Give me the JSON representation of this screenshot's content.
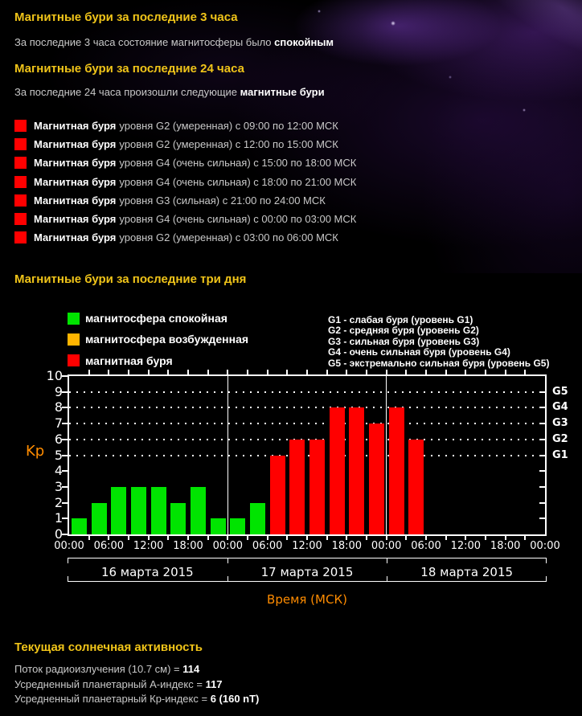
{
  "colors": {
    "background": "#000000",
    "header_yellow": "#f0c419",
    "text": "#c9c9c9",
    "text_bold": "#ffffff",
    "quiet_green": "#00e400",
    "excited_amber": "#ffb400",
    "storm_red": "#ff0000",
    "axis_orange": "#ff8c00"
  },
  "section_3h": {
    "title": "Магнитные бури за последние 3 часа",
    "text": "За последние 3 часа состояние магнитосферы было",
    "text_bold": "спокойным"
  },
  "section_24h": {
    "title": "Магнитные бури за последние 24 часа",
    "text": "За последние 24 часа произошли следующие",
    "text_bold": "магнитные бури",
    "storms": [
      {
        "name_bold": "Магнитная буря",
        "details": "уровня  G2 (умеренная) с 09:00 по 12:00 МСК"
      },
      {
        "name_bold": "Магнитная буря",
        "details": "уровня  G2 (умеренная) с 12:00 по 15:00 МСК"
      },
      {
        "name_bold": "Магнитная буря",
        "details": "уровня  G4 (очень сильная) с 15:00 по 18:00 МСК"
      },
      {
        "name_bold": "Магнитная буря",
        "details": "уровня  G4 (очень сильная) с 18:00 по 21:00 МСК"
      },
      {
        "name_bold": "Магнитная буря",
        "details": "уровня  G3 (сильная) с 21:00 по 24:00 МСК"
      },
      {
        "name_bold": "Магнитная буря",
        "details": "уровня  G4 (очень сильная) с 00:00 по 03:00 МСК"
      },
      {
        "name_bold": "Магнитная буря",
        "details": "уровня  G2 (умеренная) с 03:00 по 06:00 МСК"
      }
    ]
  },
  "chart_section": {
    "title": "Магнитные бури за последние три дня",
    "legend": [
      {
        "color": "#00e400",
        "label": "магнитосфера спокойная"
      },
      {
        "color": "#ffb400",
        "label": "магнитосфера возбужденная"
      },
      {
        "color": "#ff0000",
        "label": "магнитная буря"
      }
    ],
    "levels": [
      "G1 - слабая буря (уровень G1)",
      "G2 - средняя буря (уровень G2)",
      "G3 - сильная буря (уровень G3)",
      "G4 - очень сильная буря (уровень G4)",
      "G5 - экстремально сильная буря (уровень G5)"
    ]
  },
  "chart_data": {
    "type": "bar",
    "ylabel": "Kp",
    "xlabel": "Время (МСК)",
    "ylim": [
      0,
      10
    ],
    "y_ticks": [
      0,
      1,
      2,
      3,
      4,
      5,
      6,
      7,
      8,
      9,
      10
    ],
    "grid_levels": [
      5,
      6,
      7,
      8,
      9
    ],
    "right_axis_labels": [
      {
        "label": "G5",
        "kp": 9
      },
      {
        "label": "G4",
        "kp": 8
      },
      {
        "label": "G3",
        "kp": 7
      },
      {
        "label": "G2",
        "kp": 6
      },
      {
        "label": "G1",
        "kp": 5
      }
    ],
    "x_tick_labels": [
      "00:00",
      "06:00",
      "12:00",
      "18:00",
      "00:00",
      "06:00",
      "12:00",
      "18:00",
      "00:00",
      "06:00",
      "12:00",
      "18:00",
      "00:00"
    ],
    "day_labels": [
      "16 марта 2015",
      "17 марта 2015",
      "18 марта 2015"
    ],
    "hours_per_bar": 3,
    "values": [
      1,
      2,
      3,
      3,
      3,
      2,
      3,
      1,
      1,
      2,
      5,
      6,
      6,
      8,
      8,
      7,
      8,
      6,
      null,
      null,
      null,
      null,
      null,
      null
    ],
    "color_rule": {
      "quiet_green_max_kp": 3,
      "excited_amber_kp": 4,
      "storm_red_min_kp": 5
    },
    "grid": "dotted horizontal at Kp 5-9 only",
    "legend_position": "above chart"
  },
  "solar_activity": {
    "title": "Текущая солнечная активность",
    "lines": [
      {
        "label": "Поток радиоизлучения (10.7 см) =",
        "value": "114"
      },
      {
        "label": "Усредненный планетарный А-индекс =",
        "value": "117"
      },
      {
        "label": "Усредненный планетарный Кр-индекс =",
        "value": "6 (160 nT)"
      }
    ]
  }
}
